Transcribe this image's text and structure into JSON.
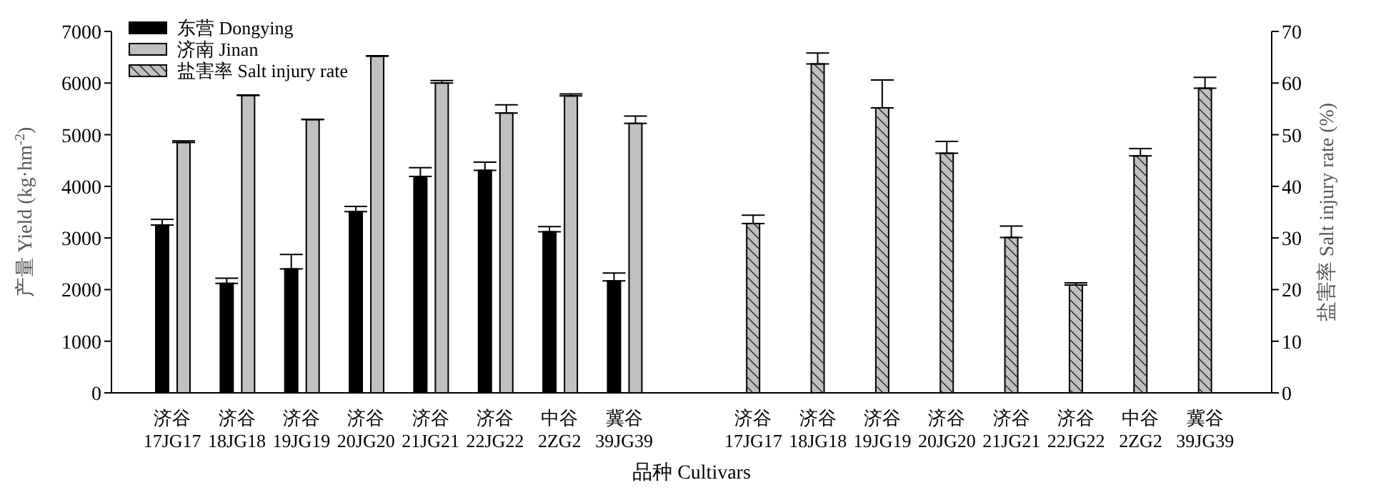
{
  "chart_data": {
    "type": "bar",
    "xlabel": "品种 Cultivars",
    "ylabel": "产量 Yield (kg·hm$^{-2}$)",
    "y2label": "盐害率 Salt injury rate (%)",
    "categories": [
      "济谷\n17JG17",
      "济谷\n18JG18",
      "济谷\n19JG19",
      "济谷\n20JG20",
      "济谷\n21JG21",
      "济谷\n22JG22",
      "中谷\n2ZG2",
      "冀谷\n39JG39",
      null,
      "济谷\n17JG17",
      "济谷\n18JG18",
      "济谷\n19JG19",
      "济谷\n20JG20",
      "济谷\n21JG21",
      "济谷\n22JG22",
      "中谷\n2ZG2",
      "冀谷\n39JG39"
    ],
    "series": [
      {
        "name": "东营 Dongying",
        "color": "#000000",
        "values": [
          3250,
          2120,
          2400,
          3510,
          4190,
          4310,
          3120,
          2170,
          null,
          null,
          null,
          null,
          null,
          null,
          null,
          null,
          null
        ],
        "errors": [
          [
            3250,
            3360
          ],
          [
            2120,
            2220
          ],
          [
            2400,
            2680
          ],
          [
            3510,
            3610
          ],
          [
            4190,
            4360
          ],
          [
            4310,
            4470
          ],
          [
            3120,
            3220
          ],
          [
            2170,
            2320
          ],
          null,
          null,
          null,
          null,
          null,
          null,
          null,
          null,
          null
        ]
      },
      {
        "name": "济南 Jinan",
        "color": "#c0c0c0",
        "values": [
          4850,
          5760,
          5290,
          6520,
          6000,
          5420,
          5750,
          5220,
          null,
          null,
          null,
          null,
          null,
          null,
          null,
          null,
          null
        ],
        "errors": [
          [
            4850,
            4880
          ],
          [
            5760,
            5770
          ],
          [
            5290,
            5300
          ],
          [
            6520,
            6530
          ],
          [
            6000,
            6050
          ],
          [
            5420,
            5580
          ],
          [
            5750,
            5790
          ],
          [
            5220,
            5360
          ],
          null,
          null,
          null,
          null,
          null,
          null,
          null,
          null,
          null
        ]
      },
      {
        "name": "盐害率 Salt injury rate",
        "color": "#c0c0c0",
        "axis": "y2",
        "values": [
          null,
          null,
          null,
          null,
          null,
          null,
          null,
          null,
          null,
          32.8,
          63.7,
          55.2,
          46.4,
          30.1,
          20.9,
          45.9,
          59.0
        ],
        "errors": [
          null,
          null,
          null,
          null,
          null,
          null,
          null,
          null,
          null,
          [
            32.8,
            34.4
          ],
          [
            63.7,
            65.8
          ],
          [
            55.2,
            60.6
          ],
          [
            46.4,
            48.7
          ],
          [
            30.1,
            32.3
          ],
          [
            20.9,
            21.3
          ],
          [
            45.9,
            47.3
          ],
          [
            59.0,
            61.1
          ]
        ]
      }
    ],
    "ylim": [
      0,
      7000
    ],
    "yticks": [
      0,
      1000,
      2000,
      3000,
      4000,
      5000,
      6000,
      7000
    ],
    "y2lim": [
      0,
      70
    ],
    "y2ticks": [
      0,
      10,
      20,
      30,
      40,
      50,
      60,
      70
    ],
    "legend": "top left",
    "grid": false
  }
}
